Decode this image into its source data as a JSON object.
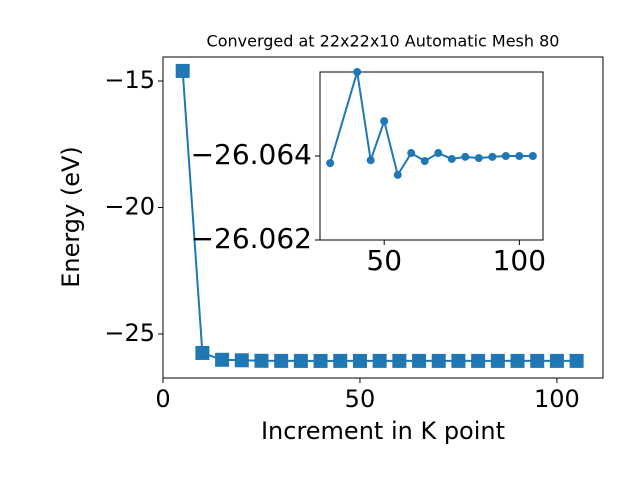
{
  "chart_data": [
    {
      "type": "line",
      "title": "Converged at 22x22x10 Automatic Mesh 80",
      "x_label": "Increment in K point",
      "y_label": "Energy (eV)",
      "x": [
        5,
        10,
        15,
        20,
        25,
        30,
        35,
        40,
        45,
        50,
        55,
        60,
        65,
        70,
        75,
        80,
        85,
        90,
        95,
        100,
        105
      ],
      "series": [
        {
          "color": "#1f77b4",
          "marker": "square",
          "values": [
            -14.6,
            -25.75,
            -26.02,
            -26.04,
            -26.06,
            -26.0638,
            -26.065,
            -26.066,
            -26.0639,
            -26.0648,
            -26.0636,
            -26.0641,
            -26.0639,
            -26.0641,
            -26.0639,
            -26.064,
            -26.064,
            -26.064,
            -26.064,
            -26.064,
            -26.064
          ]
        }
      ],
      "xlim": [
        0,
        111.7
      ],
      "xticks": [
        0,
        50,
        100
      ],
      "ylim": [
        -26.74,
        -14.05
      ],
      "yticks": [
        {
          "value": -15,
          "label": "−15"
        },
        {
          "value": -20,
          "label": "−20"
        },
        {
          "value": -25,
          "label": "−25"
        }
      ]
    },
    {
      "type": "line",
      "x": [
        30,
        40,
        45,
        50,
        55,
        60,
        65,
        70,
        75,
        80,
        85,
        90,
        95,
        100,
        105
      ],
      "series": [
        {
          "color": "#1f77b4",
          "marker": "circle",
          "values": [
            -26.06383,
            -26.066,
            -26.0639,
            -26.06483,
            -26.06355,
            -26.06407,
            -26.06388,
            -26.06407,
            -26.06393,
            -26.06398,
            -26.06395,
            -26.06398,
            -26.064,
            -26.064,
            -26.064
          ]
        }
      ],
      "xlim": [
        26.25,
        108.75
      ],
      "xticks": [
        50,
        100
      ],
      "ylim": [
        -26.062,
        -26.066
      ],
      "yticks": [
        {
          "value": -26.064,
          "label": "−26.064"
        },
        {
          "value": -26.062,
          "label": "−26.062"
        }
      ]
    }
  ]
}
